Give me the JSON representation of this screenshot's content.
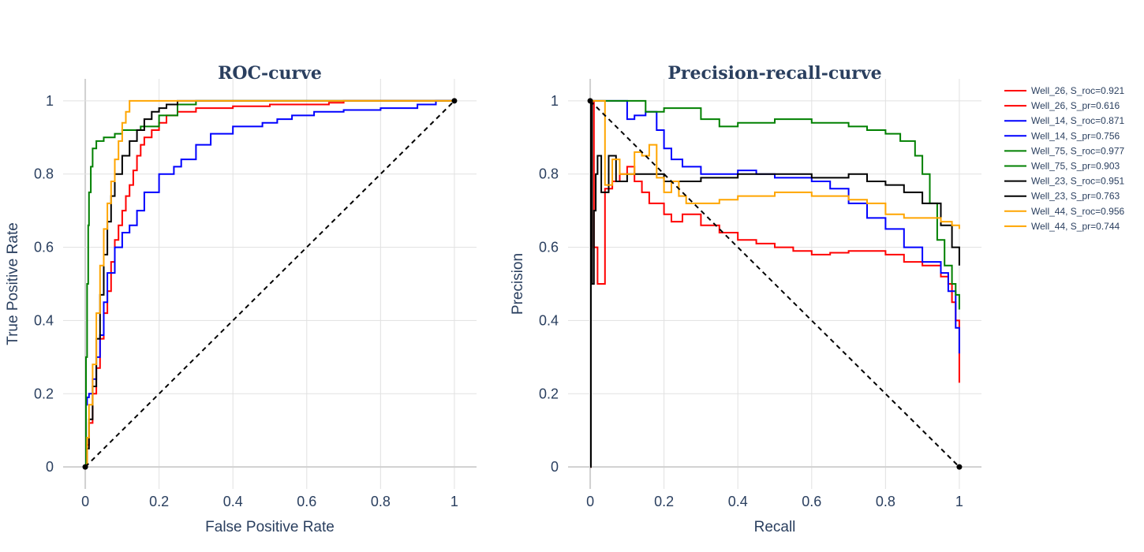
{
  "legend": {
    "placement": "right",
    "entries": [
      {
        "label": "Well_26,   S_roc=0.921",
        "color": "#ff0000"
      },
      {
        "label": "Well_26,   S_pr=0.616",
        "color": "#ff0000"
      },
      {
        "label": "Well_14,   S_roc=0.871",
        "color": "#0000ff"
      },
      {
        "label": "Well_14,   S_pr=0.756",
        "color": "#0000ff"
      },
      {
        "label": "Well_75,   S_roc=0.977",
        "color": "#008000"
      },
      {
        "label": "Well_75,   S_pr=0.903",
        "color": "#008000"
      },
      {
        "label": "Well_23,   S_roc=0.951",
        "color": "#000000"
      },
      {
        "label": "Well_23,   S_pr=0.763",
        "color": "#000000"
      },
      {
        "label": "Well_44,   S_roc=0.956",
        "color": "#ffa500"
      },
      {
        "label": "Well_44,   S_pr=0.744",
        "color": "#ffa500"
      }
    ]
  },
  "chart_data": [
    {
      "type": "line",
      "title": "ROC-curve",
      "xlabel": "False Positive Rate",
      "ylabel": "True Positive Rate",
      "xlim": [
        -0.06,
        1.06
      ],
      "ylim": [
        -0.06,
        1.06
      ],
      "xticks": [
        0,
        0.2,
        0.4,
        0.6,
        0.8,
        1
      ],
      "yticks": [
        0,
        0.2,
        0.4,
        0.6,
        0.8,
        1
      ],
      "xtick_labels": [
        "0",
        "0.2",
        "0.4",
        "0.6",
        "0.8",
        "1"
      ],
      "ytick_labels": [
        "0",
        "0.2",
        "0.4",
        "0.6",
        "0.8",
        "1"
      ],
      "grid": true,
      "diagonal": {
        "x": [
          0,
          1
        ],
        "y": [
          0,
          1
        ],
        "style": "dashed",
        "color": "#000000"
      },
      "series": [
        {
          "color": "#ff0000",
          "x": [
            0,
            0.005,
            0.01,
            0.02,
            0.03,
            0.04,
            0.05,
            0.06,
            0.07,
            0.08,
            0.09,
            0.1,
            0.11,
            0.12,
            0.13,
            0.14,
            0.15,
            0.16,
            0.18,
            0.2,
            0.22,
            0.25,
            0.3,
            0.4,
            0.5,
            0.66,
            0.7,
            1
          ],
          "y": [
            0,
            0.06,
            0.12,
            0.2,
            0.27,
            0.35,
            0.42,
            0.48,
            0.56,
            0.62,
            0.66,
            0.7,
            0.74,
            0.77,
            0.81,
            0.85,
            0.88,
            0.9,
            0.92,
            0.94,
            0.96,
            0.97,
            0.98,
            0.985,
            0.99,
            0.995,
            1,
            1
          ]
        },
        {
          "color": "#0000ff",
          "x": [
            0,
            0.002,
            0.005,
            0.01,
            0.02,
            0.03,
            0.04,
            0.05,
            0.06,
            0.08,
            0.1,
            0.12,
            0.14,
            0.16,
            0.2,
            0.24,
            0.26,
            0.3,
            0.34,
            0.4,
            0.48,
            0.52,
            0.56,
            0.62,
            0.7,
            0.8,
            0.9,
            0.95,
            1
          ],
          "y": [
            0,
            0.17,
            0.19,
            0.2,
            0.24,
            0.3,
            0.36,
            0.45,
            0.53,
            0.6,
            0.64,
            0.66,
            0.7,
            0.75,
            0.8,
            0.82,
            0.84,
            0.88,
            0.91,
            0.93,
            0.94,
            0.95,
            0.96,
            0.97,
            0.975,
            0.98,
            0.99,
            1,
            1
          ]
        },
        {
          "color": "#008000",
          "x": [
            0,
            0.002,
            0.005,
            0.008,
            0.01,
            0.015,
            0.02,
            0.03,
            0.05,
            0.08,
            0.1,
            0.15,
            0.2,
            0.25,
            0.3,
            1
          ],
          "y": [
            0,
            0.3,
            0.5,
            0.66,
            0.75,
            0.82,
            0.87,
            0.89,
            0.9,
            0.91,
            0.92,
            0.93,
            0.96,
            0.99,
            1,
            1
          ]
        },
        {
          "color": "#000000",
          "x": [
            0,
            0.005,
            0.01,
            0.02,
            0.03,
            0.04,
            0.05,
            0.06,
            0.07,
            0.08,
            0.1,
            0.12,
            0.14,
            0.16,
            0.18,
            0.2,
            0.22,
            0.25,
            1
          ],
          "y": [
            0,
            0.05,
            0.13,
            0.22,
            0.35,
            0.47,
            0.58,
            0.67,
            0.74,
            0.8,
            0.85,
            0.89,
            0.92,
            0.95,
            0.97,
            0.98,
            0.99,
            1,
            1
          ]
        },
        {
          "color": "#ffa500",
          "x": [
            0,
            0.005,
            0.01,
            0.02,
            0.03,
            0.04,
            0.05,
            0.06,
            0.07,
            0.08,
            0.09,
            0.1,
            0.11,
            0.12,
            1
          ],
          "y": [
            0,
            0.08,
            0.17,
            0.28,
            0.42,
            0.55,
            0.65,
            0.72,
            0.78,
            0.84,
            0.89,
            0.94,
            0.97,
            1,
            1
          ]
        }
      ]
    },
    {
      "type": "line",
      "title": "Precision-recall-curve",
      "xlabel": "Recall",
      "ylabel": "Precision",
      "xlim": [
        -0.06,
        1.06
      ],
      "ylim": [
        -0.06,
        1.06
      ],
      "xticks": [
        0,
        0.2,
        0.4,
        0.6,
        0.8,
        1
      ],
      "yticks": [
        0,
        0.2,
        0.4,
        0.6,
        0.8,
        1
      ],
      "xtick_labels": [
        "0",
        "0.2",
        "0.4",
        "0.6",
        "0.8",
        "1"
      ],
      "ytick_labels": [
        "0",
        "0.2",
        "0.4",
        "0.6",
        "0.8",
        "1"
      ],
      "grid": true,
      "diagonal": {
        "x": [
          0,
          1
        ],
        "y": [
          1,
          0
        ],
        "style": "dashed",
        "color": "#000000"
      },
      "series": [
        {
          "color": "#ff0000",
          "x": [
            0,
            0.002,
            0.01,
            0.02,
            0.04,
            0.06,
            0.08,
            0.1,
            0.12,
            0.14,
            0.16,
            0.18,
            0.2,
            0.22,
            0.25,
            0.3,
            0.35,
            0.4,
            0.45,
            0.5,
            0.55,
            0.6,
            0.65,
            0.7,
            0.75,
            0.8,
            0.85,
            0.9,
            0.95,
            0.97,
            0.98,
            0.99,
            1,
            1
          ],
          "y": [
            0,
            1,
            0.6,
            0.5,
            0.76,
            0.78,
            0.8,
            0.82,
            0.78,
            0.75,
            0.72,
            0.72,
            0.69,
            0.67,
            0.69,
            0.66,
            0.64,
            0.62,
            0.61,
            0.6,
            0.59,
            0.58,
            0.585,
            0.59,
            0.59,
            0.58,
            0.56,
            0.55,
            0.52,
            0.5,
            0.45,
            0.4,
            0.3,
            0.23
          ]
        },
        {
          "color": "#0000ff",
          "x": [
            0,
            0.005,
            0.02,
            0.05,
            0.08,
            0.1,
            0.12,
            0.15,
            0.18,
            0.2,
            0.22,
            0.25,
            0.3,
            0.35,
            0.4,
            0.45,
            0.5,
            0.55,
            0.6,
            0.65,
            0.7,
            0.75,
            0.8,
            0.85,
            0.9,
            0.95,
            0.97,
            0.99,
            1,
            1
          ],
          "y": [
            1,
            1,
            1,
            1,
            1,
            0.95,
            0.96,
            0.97,
            0.92,
            0.87,
            0.84,
            0.82,
            0.8,
            0.8,
            0.81,
            0.8,
            0.79,
            0.79,
            0.78,
            0.76,
            0.72,
            0.68,
            0.65,
            0.6,
            0.56,
            0.53,
            0.48,
            0.38,
            0.33,
            0.31
          ]
        },
        {
          "color": "#008000",
          "x": [
            0,
            0.01,
            0.05,
            0.12,
            0.15,
            0.2,
            0.25,
            0.3,
            0.35,
            0.4,
            0.45,
            0.5,
            0.55,
            0.6,
            0.65,
            0.7,
            0.75,
            0.8,
            0.84,
            0.88,
            0.9,
            0.92,
            0.94,
            0.96,
            0.98,
            0.99,
            1,
            1
          ],
          "y": [
            1,
            1,
            1,
            1,
            0.97,
            0.98,
            0.98,
            0.95,
            0.93,
            0.94,
            0.94,
            0.95,
            0.95,
            0.94,
            0.94,
            0.93,
            0.92,
            0.91,
            0.89,
            0.85,
            0.8,
            0.72,
            0.62,
            0.55,
            0.5,
            0.47,
            0.44,
            0.43
          ]
        },
        {
          "color": "#000000",
          "x": [
            0,
            0.002,
            0.005,
            0.01,
            0.015,
            0.02,
            0.03,
            0.05,
            0.07,
            0.1,
            0.15,
            0.2,
            0.3,
            0.4,
            0.5,
            0.6,
            0.7,
            0.75,
            0.8,
            0.85,
            0.9,
            0.95,
            0.98,
            1,
            1
          ],
          "y": [
            0,
            1,
            0.5,
            0.7,
            0.8,
            0.85,
            0.75,
            0.85,
            0.78,
            0.8,
            0.8,
            0.78,
            0.79,
            0.8,
            0.8,
            0.79,
            0.8,
            0.78,
            0.77,
            0.75,
            0.72,
            0.66,
            0.6,
            0.56,
            0.55
          ]
        },
        {
          "color": "#ffa500",
          "x": [
            0,
            0.01,
            0.02,
            0.03,
            0.04,
            0.06,
            0.08,
            0.12,
            0.14,
            0.16,
            0.18,
            0.2,
            0.22,
            0.24,
            0.26,
            0.3,
            0.35,
            0.4,
            0.45,
            0.5,
            0.55,
            0.6,
            0.65,
            0.7,
            0.75,
            0.8,
            0.85,
            0.9,
            0.95,
            0.98,
            1
          ],
          "y": [
            1,
            1,
            1,
            1,
            0.77,
            0.84,
            0.8,
            0.86,
            0.85,
            0.88,
            0.79,
            0.75,
            0.78,
            0.74,
            0.72,
            0.72,
            0.73,
            0.74,
            0.74,
            0.75,
            0.75,
            0.74,
            0.74,
            0.73,
            0.72,
            0.69,
            0.68,
            0.68,
            0.67,
            0.66,
            0.65
          ]
        }
      ]
    }
  ]
}
